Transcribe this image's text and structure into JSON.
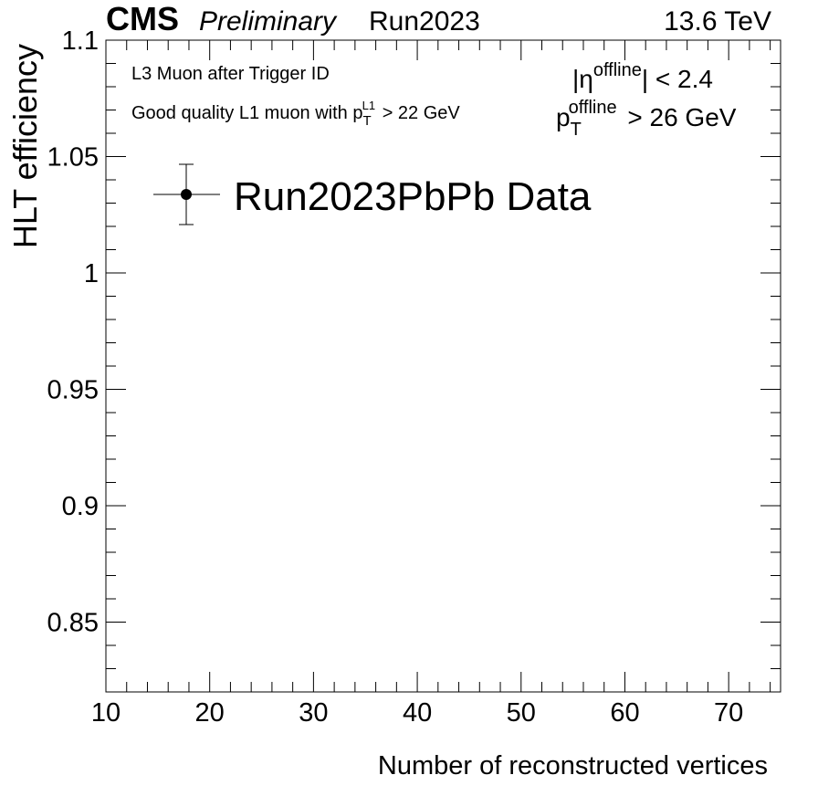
{
  "header": {
    "experiment": "CMS",
    "status": "Preliminary",
    "run": "Run2023",
    "energy": "13.6 TeV"
  },
  "annotations": {
    "line1": "L3 Muon after Trigger ID",
    "line2_prefix": "Good quality L1 muon with p",
    "line2_sup": "L1",
    "line2_sub": "T",
    "line2_suffix": " > 22 GeV",
    "eta_prefix": "|η",
    "eta_sup": "offline",
    "eta_suffix": "| < 2.4",
    "pt_prefix": "p",
    "pt_sup": "offline",
    "pt_sub": "T",
    "pt_suffix": " > 26 GeV"
  },
  "chart_data": {
    "type": "scatter",
    "xlabel": "Number of reconstructed vertices",
    "ylabel": "HLT efficiency",
    "xlim": [
      10,
      75
    ],
    "ylim": [
      0.82,
      1.1
    ],
    "x_ticks": [
      10,
      20,
      30,
      40,
      50,
      60,
      70
    ],
    "x_tick_labels": [
      "10",
      "20",
      "30",
      "40",
      "50",
      "60",
      "70"
    ],
    "y_ticks": [
      0.85,
      0.9,
      0.95,
      1.0,
      1.05,
      1.1
    ],
    "y_tick_labels": [
      "0.85",
      "0.9",
      "0.95",
      "1",
      "1.05",
      "1.1"
    ],
    "grid": false,
    "legend_position": "top-left",
    "series": [
      {
        "name": "Run2023PbPb Data",
        "x": [],
        "y": []
      }
    ],
    "marker_color": "#000000"
  }
}
